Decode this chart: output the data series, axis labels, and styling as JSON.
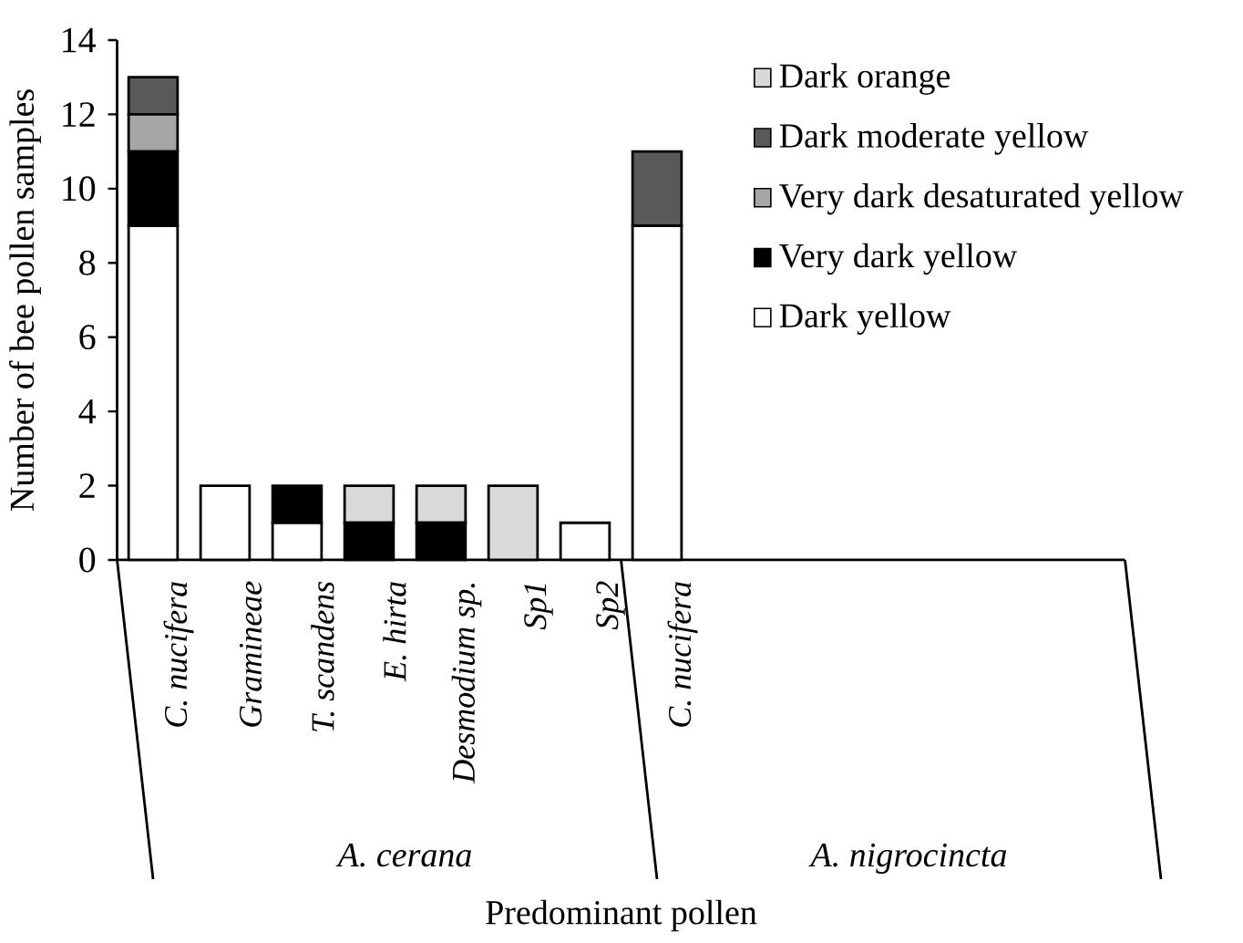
{
  "chart_data": {
    "type": "bar",
    "stacked": true,
    "xlabel": "Predominant pollen",
    "ylabel": "Number of bee pollen samples",
    "categories": [
      "C. nucifera",
      "Gramineae",
      "T. scandens",
      "E. hirta",
      "Desmodium sp.",
      "Sp1",
      "Sp2",
      "C. nucifera",
      null,
      null,
      null,
      null,
      null,
      null
    ],
    "annotations": [
      "A. cerana",
      "A. nigrocincta"
    ],
    "series": [
      {
        "name": "Dark yellow",
        "color": "#ffffff",
        "values": [
          9,
          2,
          1,
          0,
          0,
          0,
          1,
          9,
          null,
          null,
          null,
          null,
          null,
          null
        ]
      },
      {
        "name": "Very dark yellow",
        "color": "#000000",
        "values": [
          2,
          0,
          1,
          1,
          1,
          0,
          0,
          0,
          null,
          null,
          null,
          null,
          null,
          null
        ]
      },
      {
        "name": "Very dark desaturated yellow",
        "color": "#a6a6a6",
        "values": [
          1,
          0,
          0,
          0,
          0,
          0,
          0,
          0,
          null,
          null,
          null,
          null,
          null,
          null
        ]
      },
      {
        "name": "Dark moderate yellow",
        "color": "#595959",
        "values": [
          1,
          0,
          0,
          0,
          0,
          0,
          0,
          2,
          null,
          null,
          null,
          null,
          null,
          null
        ]
      },
      {
        "name": "Dark orange",
        "color": "#d9d9d9",
        "values": [
          0,
          0,
          0,
          1,
          1,
          2,
          0,
          0,
          null,
          null,
          null,
          null,
          null,
          null
        ]
      }
    ],
    "ylim": [
      0,
      14
    ],
    "yticks": [
      0,
      2,
      4,
      6,
      8,
      10,
      12,
      14
    ],
    "legend": "top right"
  }
}
